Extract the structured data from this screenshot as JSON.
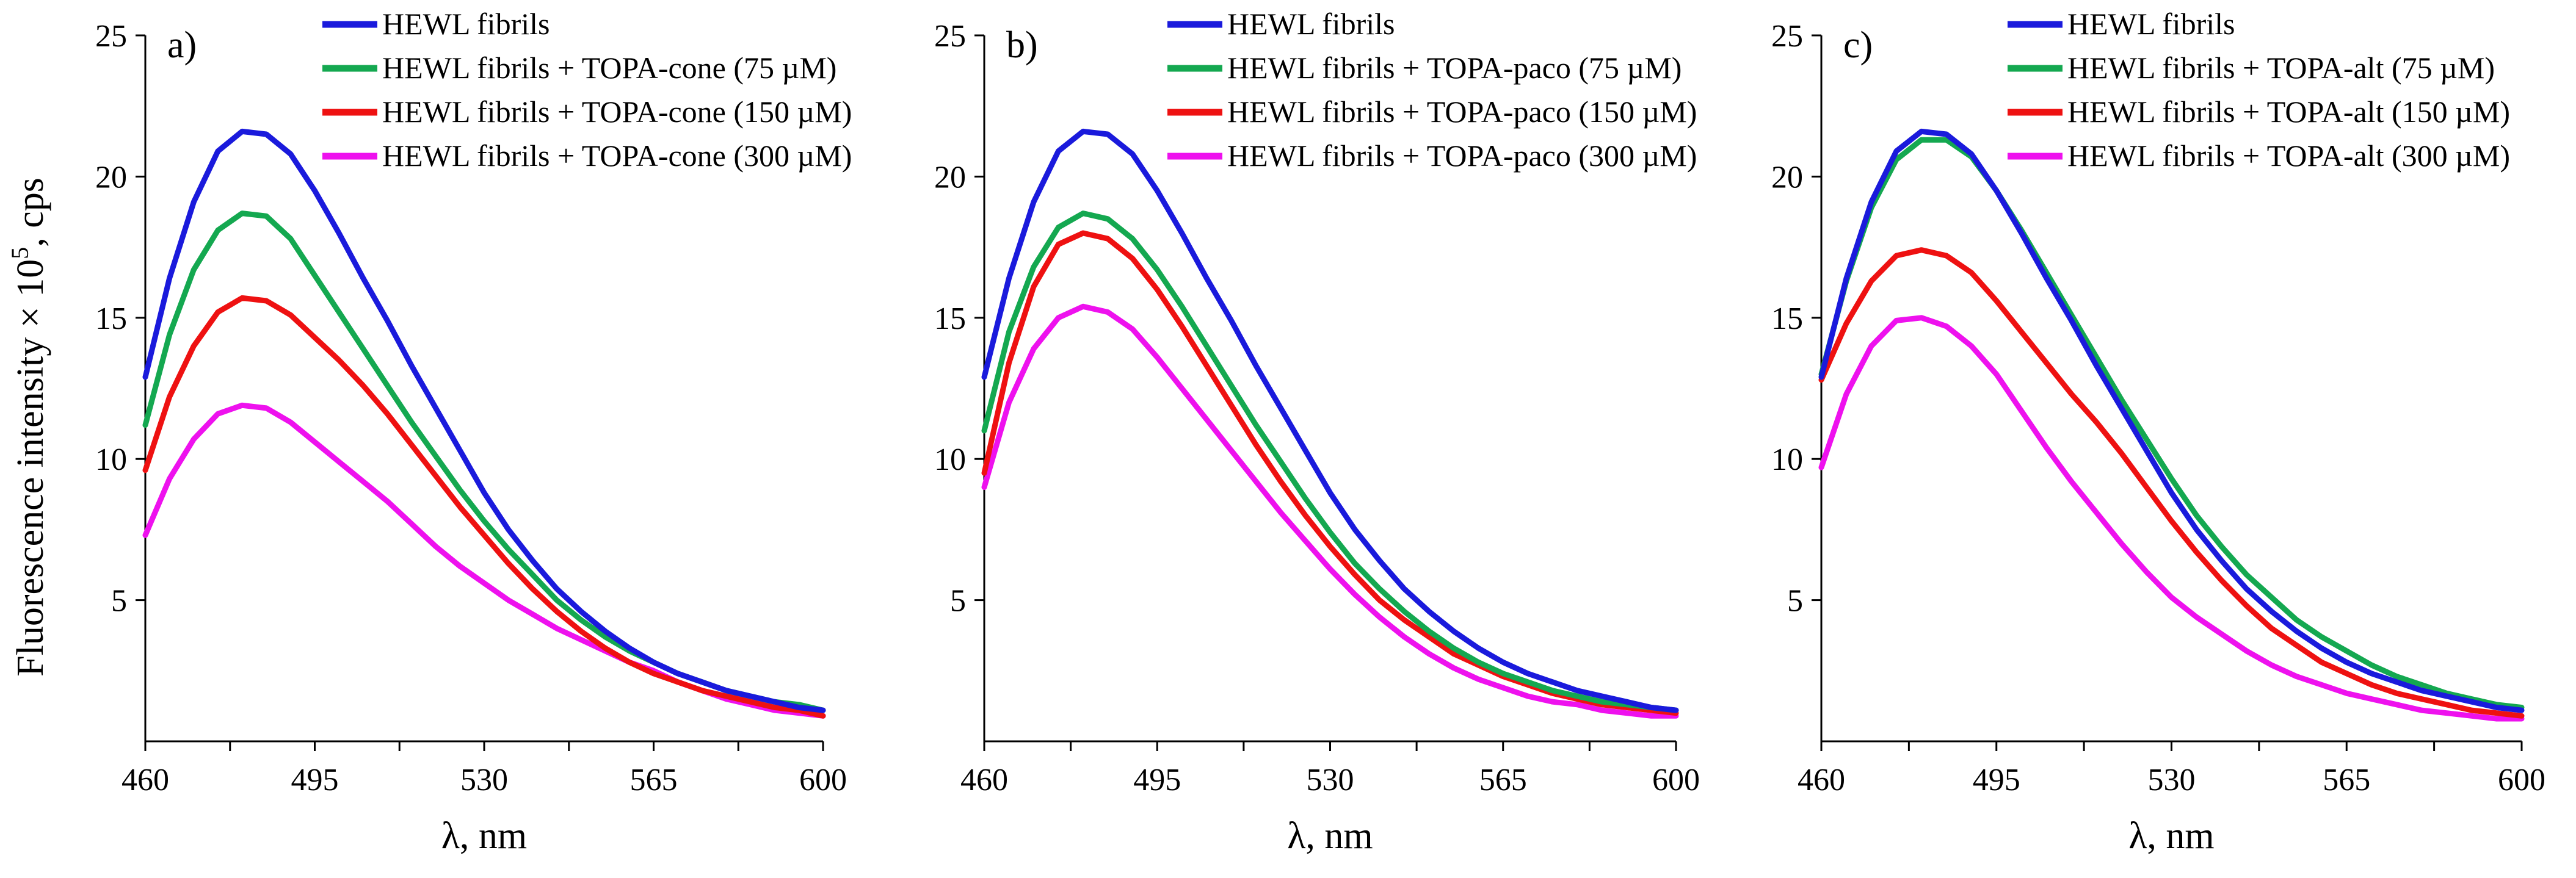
{
  "figure": {
    "ylabel_prefix": "Fluorescence intensity × 10",
    "ylabel_exponent": "5",
    "ylabel_suffix": ", cps"
  },
  "chart_data": [
    {
      "type": "line",
      "panel_label": "a)",
      "title": "",
      "xlabel": "λ, nm",
      "ylabel": "Fluorescence intensity × 10^5, cps",
      "xlim": [
        460,
        600
      ],
      "ylim": [
        0,
        25
      ],
      "x_ticks": [
        460,
        495,
        530,
        565,
        600
      ],
      "y_ticks": [
        5,
        10,
        15,
        20,
        25
      ],
      "grid": false,
      "legend_position": "top-right",
      "colors": [
        "#1a1adc",
        "#14a850",
        "#ee1111",
        "#ee11ee"
      ],
      "series": [
        {
          "name": "HEWL fibrils",
          "x": [
            460,
            465,
            470,
            475,
            480,
            485,
            490,
            495,
            500,
            505,
            510,
            515,
            520,
            525,
            530,
            535,
            540,
            545,
            550,
            555,
            560,
            565,
            570,
            575,
            580,
            585,
            590,
            595,
            600
          ],
          "y": [
            12.9,
            16.4,
            19.1,
            20.9,
            21.6,
            21.5,
            20.8,
            19.5,
            18.0,
            16.4,
            14.9,
            13.3,
            11.8,
            10.3,
            8.8,
            7.5,
            6.4,
            5.4,
            4.6,
            3.9,
            3.3,
            2.8,
            2.4,
            2.1,
            1.8,
            1.6,
            1.4,
            1.2,
            1.1
          ]
        },
        {
          "name": "HEWL fibrils + TOPA-cone (75 µM)",
          "x": [
            460,
            465,
            470,
            475,
            480,
            485,
            490,
            495,
            500,
            505,
            510,
            515,
            520,
            525,
            530,
            535,
            540,
            545,
            550,
            555,
            560,
            565,
            570,
            575,
            580,
            585,
            590,
            595,
            600
          ],
          "y": [
            11.2,
            14.4,
            16.7,
            18.1,
            18.7,
            18.6,
            17.8,
            16.5,
            15.2,
            13.9,
            12.6,
            11.3,
            10.1,
            8.9,
            7.8,
            6.8,
            5.9,
            5.0,
            4.3,
            3.7,
            3.2,
            2.8,
            2.4,
            2.1,
            1.8,
            1.6,
            1.4,
            1.3,
            1.1
          ]
        },
        {
          "name": "HEWL fibrils + TOPA-cone (150 µM)",
          "x": [
            460,
            465,
            470,
            475,
            480,
            485,
            490,
            495,
            500,
            505,
            510,
            515,
            520,
            525,
            530,
            535,
            540,
            545,
            550,
            555,
            560,
            565,
            570,
            575,
            580,
            585,
            590,
            595,
            600
          ],
          "y": [
            9.6,
            12.2,
            14.0,
            15.2,
            15.7,
            15.6,
            15.1,
            14.3,
            13.5,
            12.6,
            11.6,
            10.5,
            9.4,
            8.3,
            7.3,
            6.3,
            5.4,
            4.6,
            3.9,
            3.3,
            2.8,
            2.4,
            2.1,
            1.8,
            1.6,
            1.4,
            1.2,
            1.1,
            0.9
          ]
        },
        {
          "name": "HEWL fibrils + TOPA-cone (300 µM)",
          "x": [
            460,
            465,
            470,
            475,
            480,
            485,
            490,
            495,
            500,
            505,
            510,
            515,
            520,
            525,
            530,
            535,
            540,
            545,
            550,
            555,
            560,
            565,
            570,
            575,
            580,
            585,
            590,
            595,
            600
          ],
          "y": [
            7.3,
            9.3,
            10.7,
            11.6,
            11.9,
            11.8,
            11.3,
            10.6,
            9.9,
            9.2,
            8.5,
            7.7,
            6.9,
            6.2,
            5.6,
            5.0,
            4.5,
            4.0,
            3.6,
            3.2,
            2.8,
            2.5,
            2.1,
            1.8,
            1.5,
            1.3,
            1.1,
            1.0,
            0.9
          ]
        }
      ]
    },
    {
      "type": "line",
      "panel_label": "b)",
      "title": "",
      "xlabel": "λ, nm",
      "ylabel": "",
      "xlim": [
        460,
        600
      ],
      "ylim": [
        0,
        25
      ],
      "x_ticks": [
        460,
        495,
        530,
        565,
        600
      ],
      "y_ticks": [
        5,
        10,
        15,
        20,
        25
      ],
      "grid": false,
      "legend_position": "top-right",
      "colors": [
        "#1a1adc",
        "#14a850",
        "#ee1111",
        "#ee11ee"
      ],
      "series": [
        {
          "name": "HEWL fibrils",
          "x": [
            460,
            465,
            470,
            475,
            480,
            485,
            490,
            495,
            500,
            505,
            510,
            515,
            520,
            525,
            530,
            535,
            540,
            545,
            550,
            555,
            560,
            565,
            570,
            575,
            580,
            585,
            590,
            595,
            600
          ],
          "y": [
            12.9,
            16.4,
            19.1,
            20.9,
            21.6,
            21.5,
            20.8,
            19.5,
            18.0,
            16.4,
            14.9,
            13.3,
            11.8,
            10.3,
            8.8,
            7.5,
            6.4,
            5.4,
            4.6,
            3.9,
            3.3,
            2.8,
            2.4,
            2.1,
            1.8,
            1.6,
            1.4,
            1.2,
            1.1
          ]
        },
        {
          "name": "HEWL fibrils + TOPA-paco (75 µM)",
          "x": [
            460,
            465,
            470,
            475,
            480,
            485,
            490,
            495,
            500,
            505,
            510,
            515,
            520,
            525,
            530,
            535,
            540,
            545,
            550,
            555,
            560,
            565,
            570,
            575,
            580,
            585,
            590,
            595,
            600
          ],
          "y": [
            11.0,
            14.5,
            16.8,
            18.2,
            18.7,
            18.5,
            17.8,
            16.7,
            15.4,
            14.0,
            12.6,
            11.2,
            9.9,
            8.6,
            7.4,
            6.3,
            5.4,
            4.6,
            3.9,
            3.3,
            2.8,
            2.4,
            2.1,
            1.8,
            1.6,
            1.4,
            1.3,
            1.2,
            1.1
          ]
        },
        {
          "name": "HEWL fibrils + TOPA-paco (150 µM)",
          "x": [
            460,
            465,
            470,
            475,
            480,
            485,
            490,
            495,
            500,
            505,
            510,
            515,
            520,
            525,
            530,
            535,
            540,
            545,
            550,
            555,
            560,
            565,
            570,
            575,
            580,
            585,
            590,
            595,
            600
          ],
          "y": [
            9.5,
            13.4,
            16.1,
            17.6,
            18.0,
            17.8,
            17.1,
            16.0,
            14.7,
            13.3,
            11.9,
            10.5,
            9.2,
            8.0,
            6.9,
            5.9,
            5.0,
            4.3,
            3.7,
            3.1,
            2.7,
            2.3,
            2.0,
            1.7,
            1.5,
            1.3,
            1.2,
            1.1,
            1.0
          ]
        },
        {
          "name": "HEWL fibrils + TOPA-paco (300 µM)",
          "x": [
            460,
            465,
            470,
            475,
            480,
            485,
            490,
            495,
            500,
            505,
            510,
            515,
            520,
            525,
            530,
            535,
            540,
            545,
            550,
            555,
            560,
            565,
            570,
            575,
            580,
            585,
            590,
            595,
            600
          ],
          "y": [
            9.0,
            12.0,
            13.9,
            15.0,
            15.4,
            15.2,
            14.6,
            13.6,
            12.5,
            11.4,
            10.3,
            9.2,
            8.1,
            7.1,
            6.1,
            5.2,
            4.4,
            3.7,
            3.1,
            2.6,
            2.2,
            1.9,
            1.6,
            1.4,
            1.3,
            1.1,
            1.0,
            0.9,
            0.9
          ]
        }
      ]
    },
    {
      "type": "line",
      "panel_label": "c)",
      "title": "",
      "xlabel": "λ, nm",
      "ylabel": "",
      "xlim": [
        460,
        600
      ],
      "ylim": [
        0,
        25
      ],
      "x_ticks": [
        460,
        495,
        530,
        565,
        600
      ],
      "y_ticks": [
        5,
        10,
        15,
        20,
        25
      ],
      "grid": false,
      "legend_position": "top-right",
      "colors": [
        "#1a1adc",
        "#14a850",
        "#ee1111",
        "#ee11ee"
      ],
      "series": [
        {
          "name": "HEWL fibrils",
          "x": [
            460,
            465,
            470,
            475,
            480,
            485,
            490,
            495,
            500,
            505,
            510,
            515,
            520,
            525,
            530,
            535,
            540,
            545,
            550,
            555,
            560,
            565,
            570,
            575,
            580,
            585,
            590,
            595,
            600
          ],
          "y": [
            12.9,
            16.4,
            19.1,
            20.9,
            21.6,
            21.5,
            20.8,
            19.5,
            18.0,
            16.4,
            14.9,
            13.3,
            11.8,
            10.3,
            8.8,
            7.5,
            6.4,
            5.4,
            4.6,
            3.9,
            3.3,
            2.8,
            2.4,
            2.1,
            1.8,
            1.6,
            1.4,
            1.2,
            1.1
          ]
        },
        {
          "name": "HEWL fibrils + TOPA-alt (75 µM)",
          "x": [
            460,
            465,
            470,
            475,
            480,
            485,
            490,
            495,
            500,
            505,
            510,
            515,
            520,
            525,
            530,
            535,
            540,
            545,
            550,
            555,
            560,
            565,
            570,
            575,
            580,
            585,
            590,
            595,
            600
          ],
          "y": [
            13.0,
            16.3,
            18.9,
            20.6,
            21.3,
            21.3,
            20.7,
            19.5,
            18.1,
            16.6,
            15.1,
            13.6,
            12.1,
            10.7,
            9.3,
            8.0,
            6.9,
            5.9,
            5.1,
            4.3,
            3.7,
            3.2,
            2.7,
            2.3,
            2.0,
            1.7,
            1.5,
            1.3,
            1.2
          ]
        },
        {
          "name": "HEWL fibrils + TOPA-alt (150 µM)",
          "x": [
            460,
            465,
            470,
            475,
            480,
            485,
            490,
            495,
            500,
            505,
            510,
            515,
            520,
            525,
            530,
            535,
            540,
            545,
            550,
            555,
            560,
            565,
            570,
            575,
            580,
            585,
            590,
            595,
            600
          ],
          "y": [
            12.8,
            14.8,
            16.3,
            17.2,
            17.4,
            17.2,
            16.6,
            15.6,
            14.5,
            13.4,
            12.3,
            11.3,
            10.2,
            9.0,
            7.8,
            6.7,
            5.7,
            4.8,
            4.0,
            3.4,
            2.8,
            2.4,
            2.0,
            1.7,
            1.5,
            1.3,
            1.1,
            1.0,
            0.9
          ]
        },
        {
          "name": "HEWL fibrils + TOPA-alt (300 µM)",
          "x": [
            460,
            465,
            470,
            475,
            480,
            485,
            490,
            495,
            500,
            505,
            510,
            515,
            520,
            525,
            530,
            535,
            540,
            545,
            550,
            555,
            560,
            565,
            570,
            575,
            580,
            585,
            590,
            595,
            600
          ],
          "y": [
            9.7,
            12.3,
            14.0,
            14.9,
            15.0,
            14.7,
            14.0,
            13.0,
            11.7,
            10.4,
            9.2,
            8.1,
            7.0,
            6.0,
            5.1,
            4.4,
            3.8,
            3.2,
            2.7,
            2.3,
            2.0,
            1.7,
            1.5,
            1.3,
            1.1,
            1.0,
            0.9,
            0.8,
            0.8
          ]
        }
      ]
    }
  ]
}
